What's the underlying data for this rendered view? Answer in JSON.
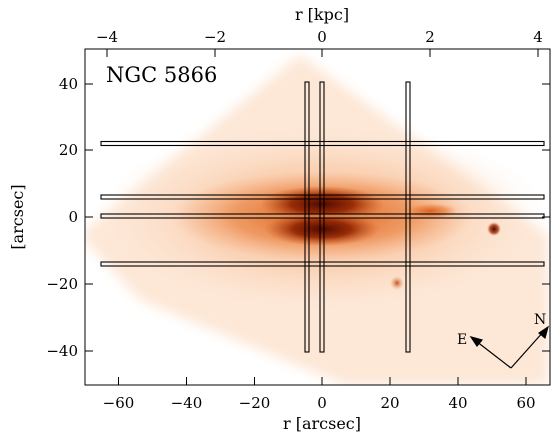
{
  "figure": {
    "object_name": "NGC 5866",
    "x_axis_bottom_label": "r [arcsec]",
    "x_axis_top_label": "r [kpc]",
    "y_axis_label": "[arcsec]",
    "x_bottom_ticks": [
      "−60",
      "−40",
      "−20",
      "0",
      "20",
      "40",
      "60"
    ],
    "x_top_ticks": [
      "−4",
      "−2",
      "0",
      "2",
      "4"
    ],
    "y_ticks": [
      "40",
      "20",
      "0",
      "−20",
      "−40"
    ],
    "compass": {
      "east_label": "E",
      "north_label": "N"
    },
    "colors": {
      "galaxy_core": "#5a0d00",
      "galaxy_inner": "#b8420f",
      "galaxy_outer": "#f2a070",
      "background_wash": "#fde8d8",
      "slit_outline": "#000000"
    }
  }
}
